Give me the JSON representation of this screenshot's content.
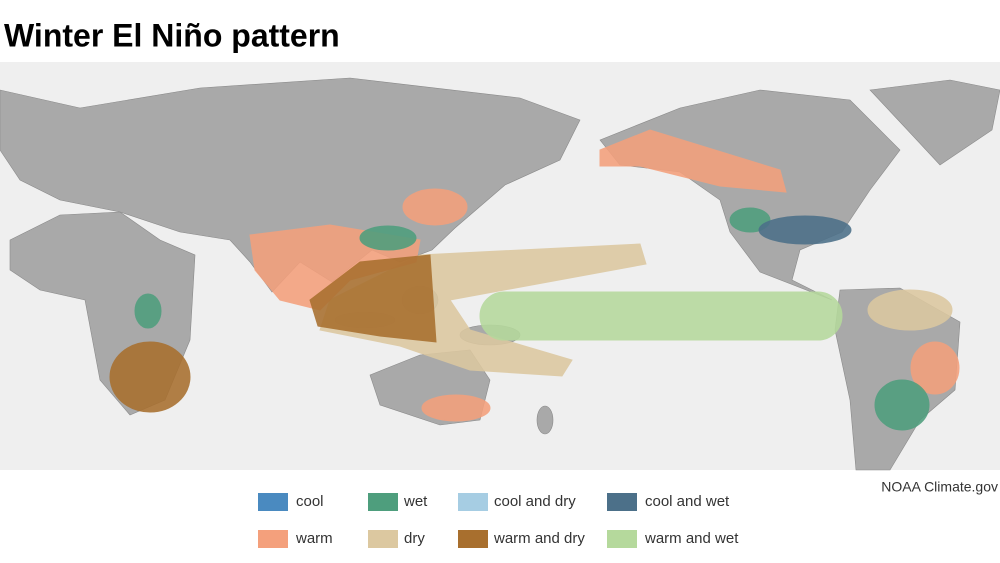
{
  "title": "Winter El Niño pattern",
  "legend": {
    "items": [
      {
        "label": "cool",
        "color": "#4a8ac0"
      },
      {
        "label": "wet",
        "color": "#4e9e7d"
      },
      {
        "label": "cool and dry",
        "color": "#a6cde3"
      },
      {
        "label": "cool and wet",
        "color": "#4c7089"
      },
      {
        "label": "warm",
        "color": "#f4a07c"
      },
      {
        "label": "dry",
        "color": "#dcc8a0"
      },
      {
        "label": "warm and dry",
        "color": "#a86f2e"
      },
      {
        "label": "warm and wet",
        "color": "#b5d99c"
      }
    ]
  },
  "credit": "NOAA Climate.gov"
}
